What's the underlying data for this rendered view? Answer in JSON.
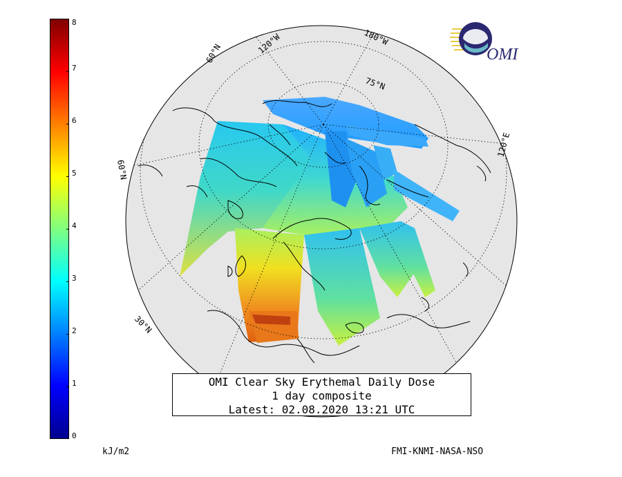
{
  "title": {
    "line1": "OMI Clear Sky Erythemal Daily Dose",
    "line2": "1 day composite",
    "line3": "Latest: 02.08.2020 13:21 UTC"
  },
  "colorbar": {
    "min": 0,
    "max": 8,
    "ticks": [
      "0",
      "1",
      "2",
      "3",
      "4",
      "5",
      "6",
      "7",
      "8"
    ],
    "unit": "kJ/m2",
    "colors": [
      "#00008f",
      "#0000ff",
      "#0080ff",
      "#00ffff",
      "#80ff80",
      "#ffff00",
      "#ff8000",
      "#ff0000",
      "#800000"
    ]
  },
  "credits": "FMI-KNMI-NASA-NSO",
  "logo": {
    "text": "OMI",
    "icon": "omi-globe-logo"
  },
  "grid_labels": {
    "lat_75": "75°N",
    "lat_60_top": "60°N",
    "lat_60_left": "60°N",
    "lat_30": "30°N",
    "lon_120w": "120°W",
    "lon_180w": "180°W",
    "lon_120e": "120°E"
  },
  "map": {
    "projection": "polar-orthographic",
    "ocean_color": "#e6e6e6",
    "land_outline": "#000000"
  }
}
